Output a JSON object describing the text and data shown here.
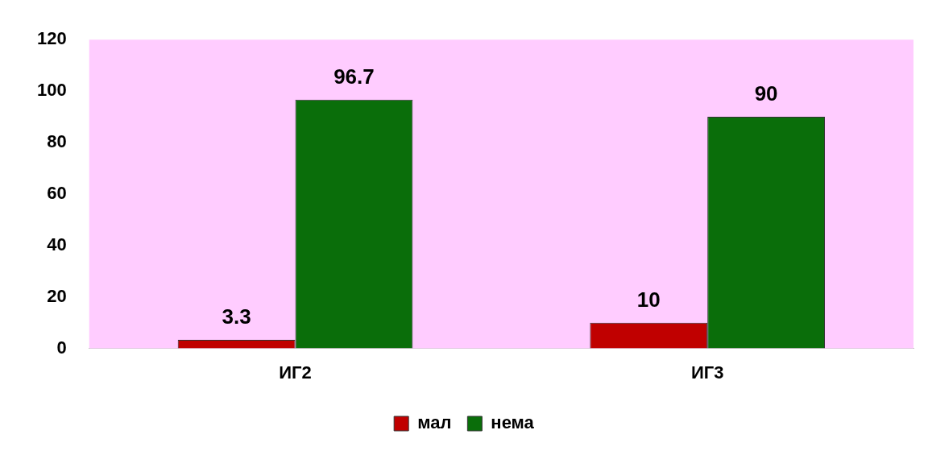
{
  "chart_data": {
    "type": "bar",
    "categories": [
      "ИГ2",
      "ИГ3"
    ],
    "series": [
      {
        "name": "мал",
        "color": "#c00000",
        "values": [
          3.3,
          10
        ]
      },
      {
        "name": "нема",
        "color": "#0a6e0a",
        "values": [
          96.7,
          90
        ]
      }
    ],
    "ylim": [
      0,
      120
    ],
    "yticks": [
      0,
      20,
      40,
      60,
      80,
      100,
      120
    ],
    "grid": false,
    "legend": "bottom",
    "data_labels": true
  }
}
